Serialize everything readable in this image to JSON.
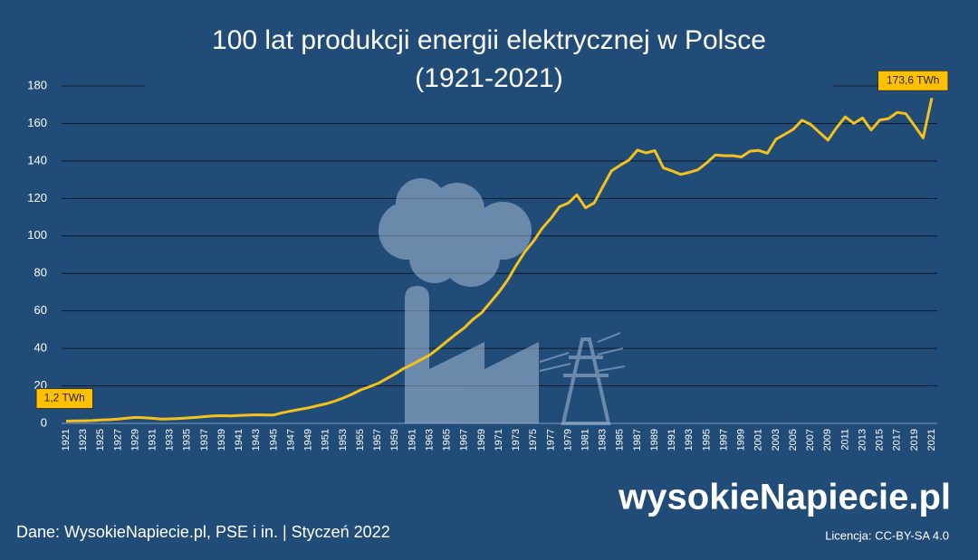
{
  "chart_data": {
    "type": "line",
    "title": [
      "100 lat produkcji energii elektrycznej w Polsce",
      "(1921-2021)"
    ],
    "x": [
      1921,
      1922,
      1923,
      1924,
      1925,
      1926,
      1927,
      1928,
      1929,
      1930,
      1931,
      1932,
      1933,
      1934,
      1935,
      1936,
      1937,
      1938,
      1939,
      1940,
      1941,
      1942,
      1943,
      1944,
      1945,
      1946,
      1947,
      1948,
      1949,
      1950,
      1951,
      1952,
      1953,
      1954,
      1955,
      1956,
      1957,
      1958,
      1959,
      1960,
      1961,
      1962,
      1963,
      1964,
      1965,
      1966,
      1967,
      1968,
      1969,
      1970,
      1971,
      1972,
      1973,
      1974,
      1975,
      1976,
      1977,
      1978,
      1979,
      1980,
      1981,
      1982,
      1983,
      1984,
      1985,
      1986,
      1987,
      1988,
      1989,
      1990,
      1991,
      1992,
      1993,
      1994,
      1995,
      1996,
      1997,
      1998,
      1999,
      2000,
      2001,
      2002,
      2003,
      2004,
      2005,
      2006,
      2007,
      2008,
      2009,
      2010,
      2011,
      2012,
      2013,
      2014,
      2015,
      2016,
      2017,
      2018,
      2019,
      2020,
      2021
    ],
    "values": [
      1.2,
      1.3,
      1.4,
      1.5,
      1.8,
      2.0,
      2.3,
      2.8,
      3.2,
      3.0,
      2.7,
      2.3,
      2.4,
      2.6,
      2.9,
      3.2,
      3.6,
      4.0,
      4.1,
      4.0,
      4.2,
      4.4,
      4.6,
      4.5,
      4.5,
      5.7,
      6.6,
      7.5,
      8.3,
      9.4,
      10.4,
      11.8,
      13.5,
      15.5,
      17.8,
      19.5,
      21.3,
      23.8,
      26.4,
      29.3,
      31.5,
      34.0,
      36.5,
      40.0,
      43.8,
      47.5,
      51.0,
      55.5,
      59.0,
      64.5,
      70.0,
      76.5,
      84.3,
      91.6,
      97.2,
      104.1,
      109.4,
      115.6,
      117.5,
      121.9,
      115.0,
      117.6,
      126.3,
      134.7,
      137.7,
      140.4,
      145.8,
      144.3,
      145.5,
      136.3,
      134.7,
      132.8,
      133.9,
      135.3,
      139.0,
      143.2,
      142.8,
      142.8,
      142.1,
      145.2,
      145.6,
      144.1,
      151.6,
      154.2,
      156.9,
      161.7,
      159.5,
      155.3,
      151.1,
      157.7,
      163.5,
      160.0,
      162.9,
      156.5,
      161.8,
      162.6,
      165.9,
      165.2,
      158.8,
      152.3,
      173.6
    ],
    "value_labels": [
      "1,2 TWh",
      null,
      null,
      null,
      null,
      null,
      null,
      null,
      null,
      null,
      null,
      null,
      null,
      null,
      null,
      null,
      null,
      null,
      null,
      null,
      null,
      null,
      null,
      null,
      null,
      null,
      null,
      null,
      null,
      null,
      null,
      null,
      null,
      null,
      null,
      null,
      null,
      null,
      null,
      null,
      null,
      null,
      null,
      null,
      null,
      null,
      null,
      null,
      null,
      null,
      null,
      null,
      null,
      null,
      null,
      null,
      null,
      null,
      null,
      null,
      null,
      null,
      null,
      null,
      null,
      null,
      null,
      null,
      null,
      null,
      null,
      null,
      null,
      null,
      null,
      null,
      null,
      null,
      null,
      null,
      null,
      null,
      null,
      null,
      null,
      null,
      null,
      null,
      null,
      null,
      null,
      null,
      null,
      null,
      null,
      null,
      null,
      null,
      null,
      null,
      "173,6 TWh"
    ],
    "color": "#f5c21b",
    "xlim": [
      1921,
      2021
    ],
    "xticks": [
      1921,
      1923,
      1925,
      1927,
      1929,
      1931,
      1933,
      1935,
      1937,
      1939,
      1941,
      1943,
      1945,
      1947,
      1949,
      1951,
      1953,
      1955,
      1957,
      1959,
      1961,
      1963,
      1965,
      1967,
      1969,
      1971,
      1973,
      1975,
      1977,
      1979,
      1981,
      1983,
      1985,
      1987,
      1989,
      1991,
      1993,
      1995,
      1997,
      1999,
      2001,
      2003,
      2005,
      2007,
      2009,
      2011,
      2013,
      2015,
      2017,
      2019,
      2021
    ],
    "ylim": [
      0,
      180
    ],
    "yticks": [
      0,
      20,
      40,
      60,
      80,
      100,
      120,
      140,
      160,
      180
    ],
    "grid": true,
    "source": "Dane: WysokieNapiecie.pl, PSE i in.  |  Styczeń 2022",
    "logo": "wysokieNapiecie.pl",
    "license": "Licencja: CC-BY-SA 4.0"
  }
}
